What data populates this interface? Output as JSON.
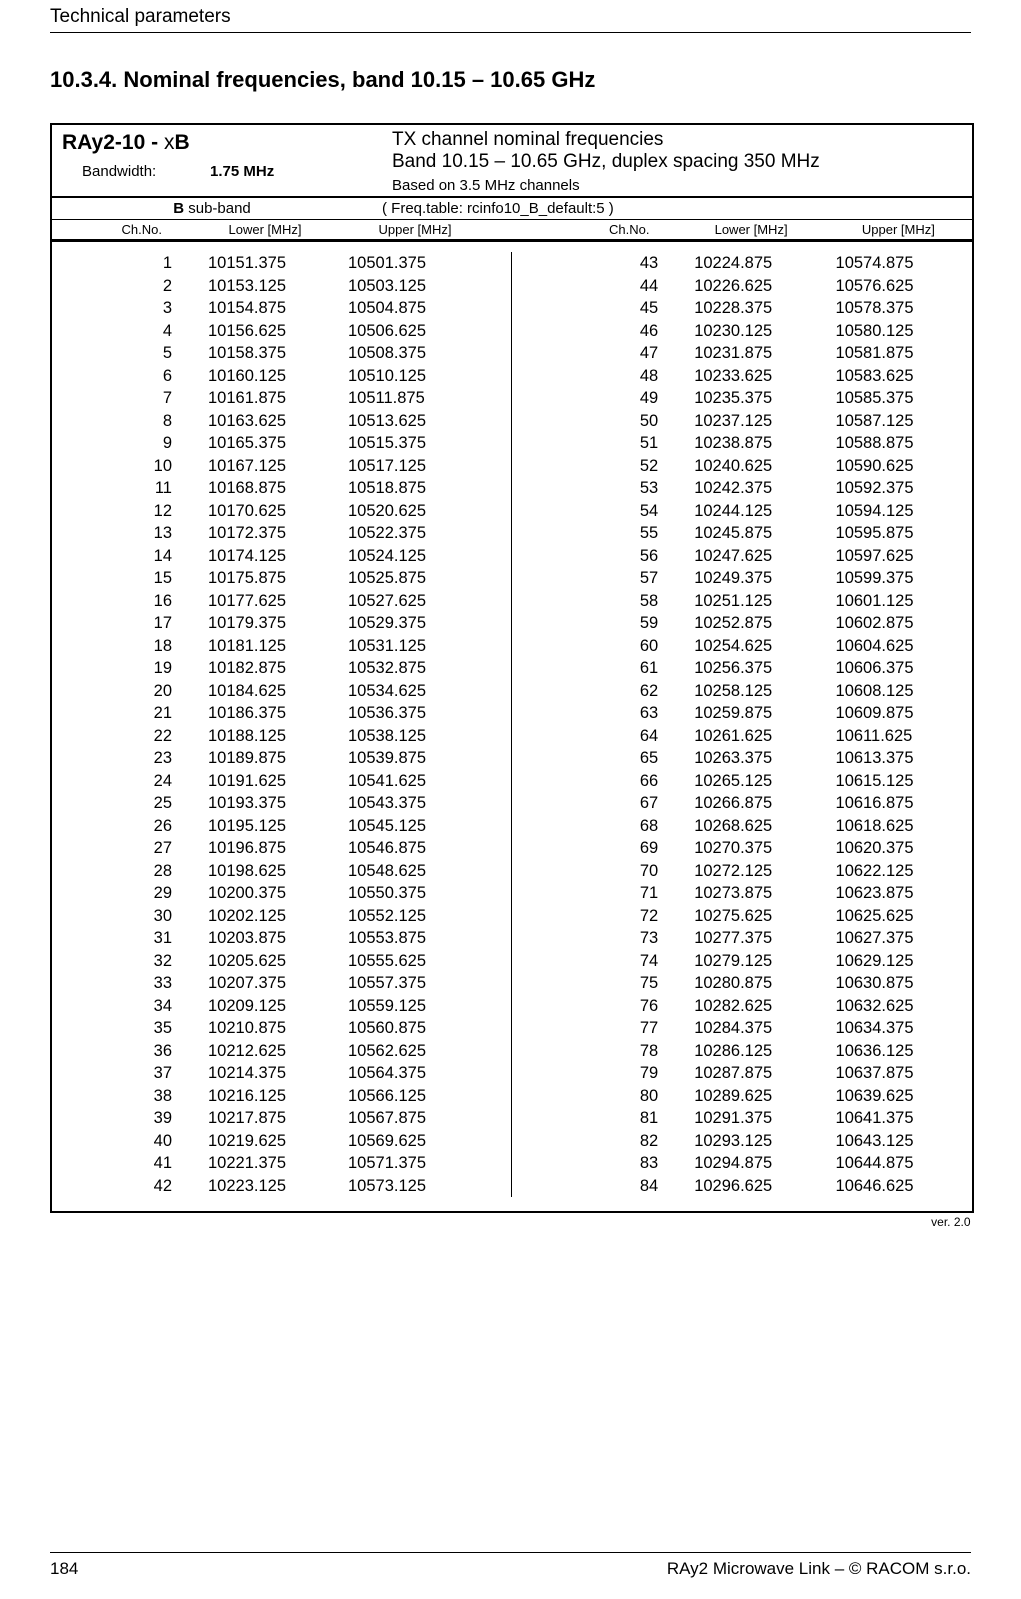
{
  "header": {
    "title": "Technical parameters"
  },
  "section": {
    "title": "10.3.4. Nominal frequencies, band 10.15 – 10.65 GHz"
  },
  "tableHeader": {
    "model_prefix": "RAy2-10 - ",
    "model_x": "x",
    "model_suffix": "B",
    "desc_line1": "TX channel nominal frequencies",
    "desc_line2": "Band 10.15 – 10.65 GHz,  duplex spacing 350 MHz",
    "bw_label": "Bandwidth:",
    "bw_value": "1.75 MHz",
    "bw_note": "Based on 3.5 MHz channels",
    "subband_bold": "B",
    "subband_rest": " sub-band",
    "freqtable": "( Freq.table:  rcinfo10_B_default:5 )"
  },
  "columns": {
    "ch": "Ch.No.",
    "lower": "Lower [MHz]",
    "upper": "Upper [MHz]"
  },
  "rowsLeft": [
    {
      "ch": "1",
      "lo": "10151.375",
      "up": "10501.375"
    },
    {
      "ch": "2",
      "lo": "10153.125",
      "up": "10503.125"
    },
    {
      "ch": "3",
      "lo": "10154.875",
      "up": "10504.875"
    },
    {
      "ch": "4",
      "lo": "10156.625",
      "up": "10506.625"
    },
    {
      "ch": "5",
      "lo": "10158.375",
      "up": "10508.375"
    },
    {
      "ch": "6",
      "lo": "10160.125",
      "up": "10510.125"
    },
    {
      "ch": "7",
      "lo": "10161.875",
      "up": "10511.875"
    },
    {
      "ch": "8",
      "lo": "10163.625",
      "up": "10513.625"
    },
    {
      "ch": "9",
      "lo": "10165.375",
      "up": "10515.375"
    },
    {
      "ch": "10",
      "lo": "10167.125",
      "up": "10517.125"
    },
    {
      "ch": "11",
      "lo": "10168.875",
      "up": "10518.875"
    },
    {
      "ch": "12",
      "lo": "10170.625",
      "up": "10520.625"
    },
    {
      "ch": "13",
      "lo": "10172.375",
      "up": "10522.375"
    },
    {
      "ch": "14",
      "lo": "10174.125",
      "up": "10524.125"
    },
    {
      "ch": "15",
      "lo": "10175.875",
      "up": "10525.875"
    },
    {
      "ch": "16",
      "lo": "10177.625",
      "up": "10527.625"
    },
    {
      "ch": "17",
      "lo": "10179.375",
      "up": "10529.375"
    },
    {
      "ch": "18",
      "lo": "10181.125",
      "up": "10531.125"
    },
    {
      "ch": "19",
      "lo": "10182.875",
      "up": "10532.875"
    },
    {
      "ch": "20",
      "lo": "10184.625",
      "up": "10534.625"
    },
    {
      "ch": "21",
      "lo": "10186.375",
      "up": "10536.375"
    },
    {
      "ch": "22",
      "lo": "10188.125",
      "up": "10538.125"
    },
    {
      "ch": "23",
      "lo": "10189.875",
      "up": "10539.875"
    },
    {
      "ch": "24",
      "lo": "10191.625",
      "up": "10541.625"
    },
    {
      "ch": "25",
      "lo": "10193.375",
      "up": "10543.375"
    },
    {
      "ch": "26",
      "lo": "10195.125",
      "up": "10545.125"
    },
    {
      "ch": "27",
      "lo": "10196.875",
      "up": "10546.875"
    },
    {
      "ch": "28",
      "lo": "10198.625",
      "up": "10548.625"
    },
    {
      "ch": "29",
      "lo": "10200.375",
      "up": "10550.375"
    },
    {
      "ch": "30",
      "lo": "10202.125",
      "up": "10552.125"
    },
    {
      "ch": "31",
      "lo": "10203.875",
      "up": "10553.875"
    },
    {
      "ch": "32",
      "lo": "10205.625",
      "up": "10555.625"
    },
    {
      "ch": "33",
      "lo": "10207.375",
      "up": "10557.375"
    },
    {
      "ch": "34",
      "lo": "10209.125",
      "up": "10559.125"
    },
    {
      "ch": "35",
      "lo": "10210.875",
      "up": "10560.875"
    },
    {
      "ch": "36",
      "lo": "10212.625",
      "up": "10562.625"
    },
    {
      "ch": "37",
      "lo": "10214.375",
      "up": "10564.375"
    },
    {
      "ch": "38",
      "lo": "10216.125",
      "up": "10566.125"
    },
    {
      "ch": "39",
      "lo": "10217.875",
      "up": "10567.875"
    },
    {
      "ch": "40",
      "lo": "10219.625",
      "up": "10569.625"
    },
    {
      "ch": "41",
      "lo": "10221.375",
      "up": "10571.375"
    },
    {
      "ch": "42",
      "lo": "10223.125",
      "up": "10573.125"
    }
  ],
  "rowsRight": [
    {
      "ch": "43",
      "lo": "10224.875",
      "up": "10574.875"
    },
    {
      "ch": "44",
      "lo": "10226.625",
      "up": "10576.625"
    },
    {
      "ch": "45",
      "lo": "10228.375",
      "up": "10578.375"
    },
    {
      "ch": "46",
      "lo": "10230.125",
      "up": "10580.125"
    },
    {
      "ch": "47",
      "lo": "10231.875",
      "up": "10581.875"
    },
    {
      "ch": "48",
      "lo": "10233.625",
      "up": "10583.625"
    },
    {
      "ch": "49",
      "lo": "10235.375",
      "up": "10585.375"
    },
    {
      "ch": "50",
      "lo": "10237.125",
      "up": "10587.125"
    },
    {
      "ch": "51",
      "lo": "10238.875",
      "up": "10588.875"
    },
    {
      "ch": "52",
      "lo": "10240.625",
      "up": "10590.625"
    },
    {
      "ch": "53",
      "lo": "10242.375",
      "up": "10592.375"
    },
    {
      "ch": "54",
      "lo": "10244.125",
      "up": "10594.125"
    },
    {
      "ch": "55",
      "lo": "10245.875",
      "up": "10595.875"
    },
    {
      "ch": "56",
      "lo": "10247.625",
      "up": "10597.625"
    },
    {
      "ch": "57",
      "lo": "10249.375",
      "up": "10599.375"
    },
    {
      "ch": "58",
      "lo": "10251.125",
      "up": "10601.125"
    },
    {
      "ch": "59",
      "lo": "10252.875",
      "up": "10602.875"
    },
    {
      "ch": "60",
      "lo": "10254.625",
      "up": "10604.625"
    },
    {
      "ch": "61",
      "lo": "10256.375",
      "up": "10606.375"
    },
    {
      "ch": "62",
      "lo": "10258.125",
      "up": "10608.125"
    },
    {
      "ch": "63",
      "lo": "10259.875",
      "up": "10609.875"
    },
    {
      "ch": "64",
      "lo": "10261.625",
      "up": "10611.625"
    },
    {
      "ch": "65",
      "lo": "10263.375",
      "up": "10613.375"
    },
    {
      "ch": "66",
      "lo": "10265.125",
      "up": "10615.125"
    },
    {
      "ch": "67",
      "lo": "10266.875",
      "up": "10616.875"
    },
    {
      "ch": "68",
      "lo": "10268.625",
      "up": "10618.625"
    },
    {
      "ch": "69",
      "lo": "10270.375",
      "up": "10620.375"
    },
    {
      "ch": "70",
      "lo": "10272.125",
      "up": "10622.125"
    },
    {
      "ch": "71",
      "lo": "10273.875",
      "up": "10623.875"
    },
    {
      "ch": "72",
      "lo": "10275.625",
      "up": "10625.625"
    },
    {
      "ch": "73",
      "lo": "10277.375",
      "up": "10627.375"
    },
    {
      "ch": "74",
      "lo": "10279.125",
      "up": "10629.125"
    },
    {
      "ch": "75",
      "lo": "10280.875",
      "up": "10630.875"
    },
    {
      "ch": "76",
      "lo": "10282.625",
      "up": "10632.625"
    },
    {
      "ch": "77",
      "lo": "10284.375",
      "up": "10634.375"
    },
    {
      "ch": "78",
      "lo": "10286.125",
      "up": "10636.125"
    },
    {
      "ch": "79",
      "lo": "10287.875",
      "up": "10637.875"
    },
    {
      "ch": "80",
      "lo": "10289.625",
      "up": "10639.625"
    },
    {
      "ch": "81",
      "lo": "10291.375",
      "up": "10641.375"
    },
    {
      "ch": "82",
      "lo": "10293.125",
      "up": "10643.125"
    },
    {
      "ch": "83",
      "lo": "10294.875",
      "up": "10644.875"
    },
    {
      "ch": "84",
      "lo": "10296.625",
      "up": "10646.625"
    }
  ],
  "version": "ver. 2.0",
  "footer": {
    "page": "184",
    "right": "RAy2 Microwave Link – © RACOM s.r.o."
  }
}
